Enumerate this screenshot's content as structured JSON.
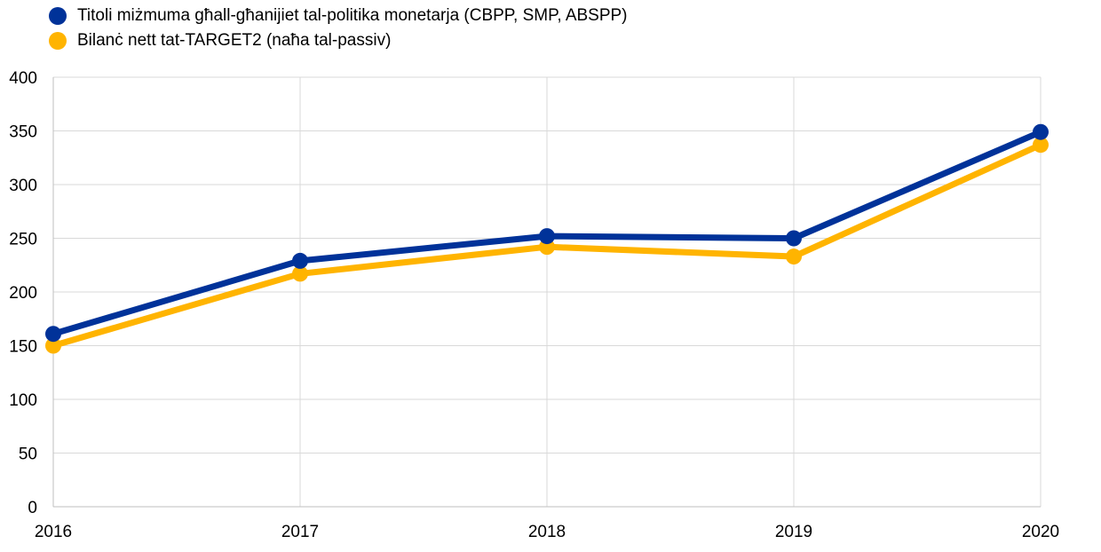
{
  "legend": {
    "items": [
      {
        "label": "Titoli miżmuma għall-għanijiet tal-politika monetarja (CBPP, SMP, ABSPP)",
        "color": "#003299"
      },
      {
        "label": "Bilanċ nett tat-TARGET2 (naħa tal-passiv)",
        "color": "#ffb400"
      }
    ]
  },
  "chart_data": {
    "type": "line",
    "title": "",
    "xlabel": "",
    "ylabel": "",
    "x": [
      "2016",
      "2017",
      "2018",
      "2019",
      "2020"
    ],
    "ylim": [
      0,
      400
    ],
    "yticks": [
      0,
      50,
      100,
      150,
      200,
      250,
      300,
      350,
      400
    ],
    "grid": true,
    "legend_position": "top-left",
    "series": [
      {
        "name": "Titoli miżmuma għall-għanijiet tal-politika monetarja (CBPP, SMP, ABSPP)",
        "color": "#003299",
        "values": [
          161,
          229,
          252,
          250,
          349
        ]
      },
      {
        "name": "Bilanċ nett tat-TARGET2 (naħa tal-passiv)",
        "color": "#ffb400",
        "values": [
          150,
          217,
          242,
          233,
          337
        ]
      }
    ]
  }
}
